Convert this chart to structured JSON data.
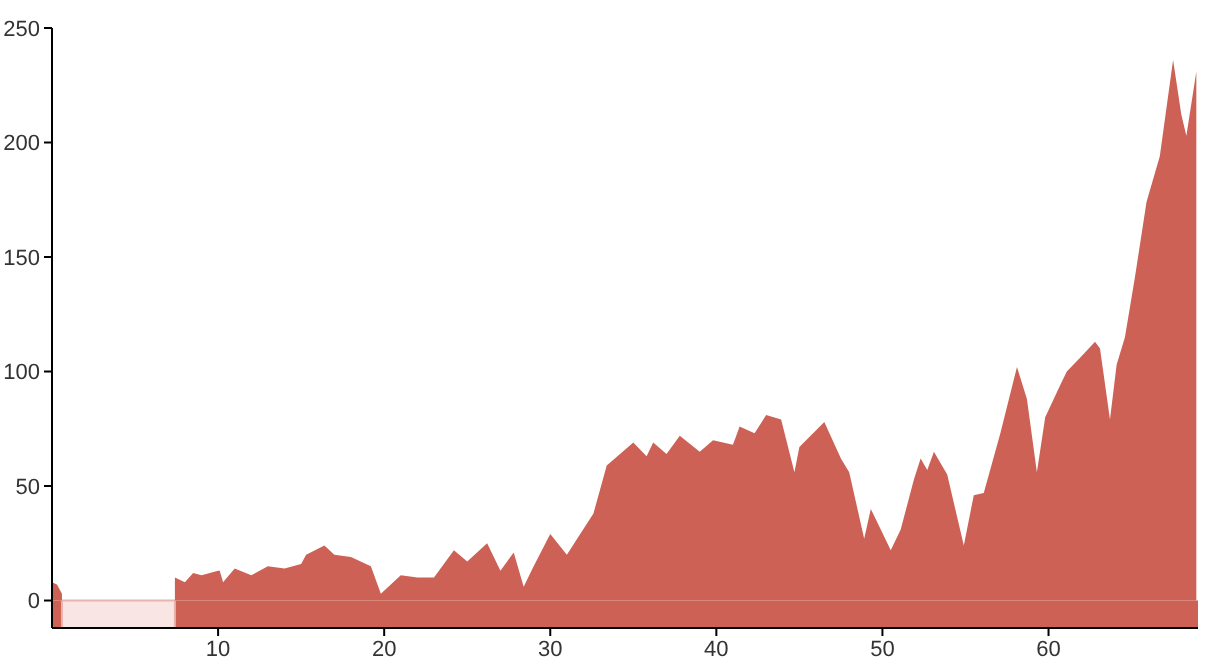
{
  "chart_data": {
    "type": "area",
    "xlim": [
      0,
      69
    ],
    "ylim": [
      -12,
      250
    ],
    "xticks": [
      10,
      20,
      30,
      40,
      50,
      60
    ],
    "yticks": [
      0,
      50,
      100,
      150,
      200,
      250
    ],
    "grid": false,
    "legend": false,
    "series": [
      {
        "color": "#cd6155",
        "x": [
          0,
          0.3,
          0.6
        ],
        "values": [
          8,
          7,
          3
        ]
      },
      {
        "color": "#cd6155",
        "x": [
          7.4,
          8,
          8.5,
          9,
          10,
          10.1,
          10.3,
          11,
          12,
          13,
          14,
          15,
          15.3,
          16.4,
          17,
          18,
          19.2,
          19.8,
          21,
          22,
          23,
          24.2,
          25,
          26.2,
          27,
          27.8,
          28.4,
          29,
          30,
          31,
          32.6,
          33.4,
          35,
          35.8,
          36.2,
          37,
          37.8,
          39,
          39.8,
          41,
          41.4,
          42.3,
          43,
          43.9,
          44.7,
          45,
          46.5,
          47.5,
          48,
          48.9,
          49.3,
          49.9,
          50.5,
          51.1,
          51.9,
          52.3,
          52.7,
          53.1,
          53.9,
          54.9,
          55.5,
          56.1,
          57.1,
          58.1,
          58.7,
          59.3,
          59.8,
          60.7,
          61.1,
          61.9,
          62.8,
          63.1,
          63.7,
          64.1,
          64.6,
          65.2,
          65.9,
          66.7,
          67.5,
          68,
          68.3,
          68.9
        ],
        "values": [
          10,
          8,
          12,
          11,
          13,
          13,
          8,
          14,
          11,
          15,
          14,
          16,
          20,
          24,
          20,
          19,
          15,
          3,
          11,
          10,
          10,
          22,
          17,
          25,
          13,
          21,
          6,
          15,
          29,
          20,
          38,
          59,
          69,
          63,
          69,
          64,
          72,
          65,
          70,
          68,
          76,
          73,
          81,
          79,
          56,
          67,
          78,
          62,
          56,
          27,
          40,
          31,
          22,
          31,
          53,
          62,
          57,
          65,
          55,
          24,
          46,
          47,
          73,
          102,
          88,
          56,
          80,
          94,
          100,
          106,
          113,
          110,
          79,
          103,
          115,
          141,
          174,
          194,
          236,
          212,
          203,
          231
        ]
      }
    ],
    "bands": [
      {
        "axis": "y",
        "from": -12,
        "to": 0,
        "color": "#cd6155"
      },
      {
        "axis": "x",
        "from": 0.6,
        "to": 7.4,
        "color": "#f9e5e3"
      }
    ]
  }
}
